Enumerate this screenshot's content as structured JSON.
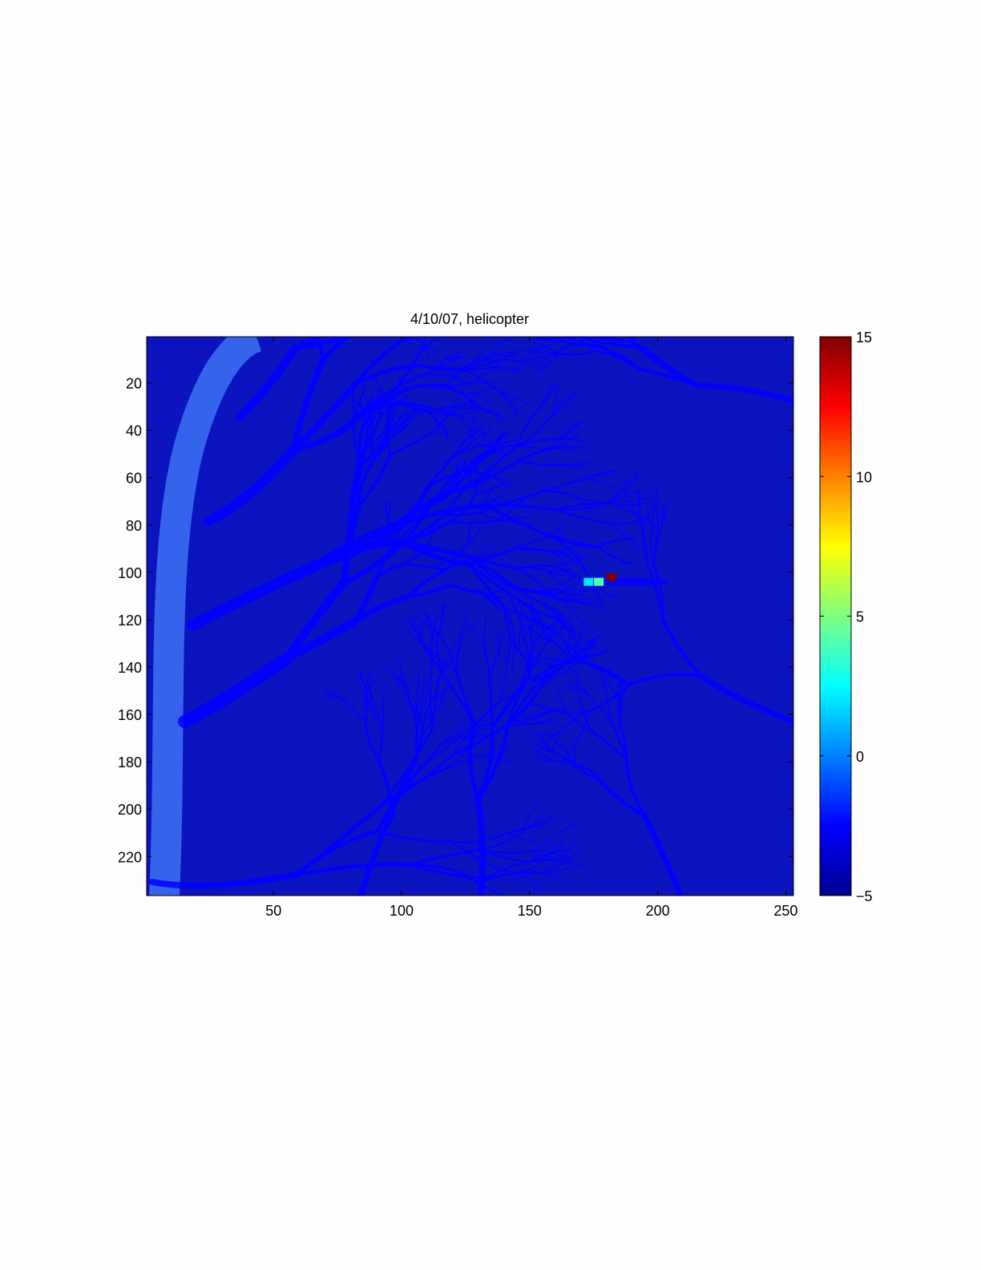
{
  "chart_data": {
    "type": "heatmap",
    "title": "4/10/07, helicopter",
    "xlabel": "",
    "ylabel": "",
    "xlim": [
      0.5,
      253
    ],
    "ylim": [
      0.5,
      236.5
    ],
    "y_reversed": true,
    "xticks": [
      50,
      100,
      150,
      200,
      250
    ],
    "yticks": [
      20,
      40,
      60,
      80,
      100,
      120,
      140,
      160,
      180,
      200,
      220
    ],
    "colormap": "jet",
    "clim": [
      -5,
      15
    ],
    "colorbar": {
      "ticks": [
        -5,
        0,
        5,
        10,
        15
      ],
      "tick_labels": [
        "−5",
        "0",
        "5",
        "10",
        "15"
      ],
      "placement": "right"
    },
    "background_value": -4,
    "branch_value": -2.5,
    "hotspots": [
      {
        "x": 182,
        "y": 102,
        "value": 15
      },
      {
        "x": 177,
        "y": 104,
        "value": 4
      },
      {
        "x": 173,
        "y": 104,
        "value": 2
      }
    ],
    "grid": false
  }
}
